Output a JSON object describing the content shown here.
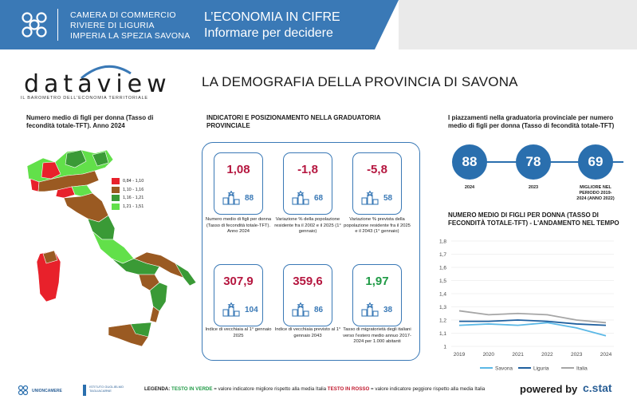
{
  "header": {
    "org_line1": "CAMERA DI COMMERCIO",
    "org_line2": "RIVIERE DI LIGURIA",
    "org_line3": "IMPERIA LA SPEZIA SAVONA",
    "title_line1": "L’ECONOMIA IN CIFRE",
    "title_line2": "Informare per decidere"
  },
  "brand": {
    "name": "dataview",
    "tagline": "IL BAROMETRO DELL'ECONOMIA TERRITORIALE"
  },
  "page_title": "LA DEMOGRAFIA DELLA PROVINCIA DI SAVONA",
  "map": {
    "title": "Numero medio di figli per donna (Tasso di fecondità totale-TFT). Anno 2024",
    "legend": [
      {
        "label": "0,84 - 1,10",
        "color": "#e8212b"
      },
      {
        "label": "1,10 - 1,16",
        "color": "#9a5a22"
      },
      {
        "label": "1,16 - 1,21",
        "color": "#3a9a36"
      },
      {
        "label": "1,21 - 1,51",
        "color": "#62e04a"
      }
    ]
  },
  "indicators": {
    "title": "INDICATORI E POSIZIONAMENTO NELLA GRADUATORIA PROVINCIALE",
    "items": [
      {
        "value": "1,08",
        "rank": "88",
        "color": "red",
        "desc": "Numero medio di figli per donna (Tasso di fecondità totale-TFT). Anno 2024"
      },
      {
        "value": "-1,8",
        "rank": "68",
        "color": "red",
        "desc": "Variazione % della popolazione residente fra il 2002 e il 2025 (1° gennaio)"
      },
      {
        "value": "-5,8",
        "rank": "58",
        "color": "red",
        "desc": "Variazione % prevista della popolazione residente fra il 2025 e il 2043 (1° gennaio)"
      },
      {
        "value": "307,9",
        "rank": "104",
        "color": "red",
        "desc": "Indice di vecchiaia al 1° gennaio 2025"
      },
      {
        "value": "359,6",
        "rank": "86",
        "color": "red",
        "desc": "Indice di vecchiaia previsto al 1° gennaio 2043"
      },
      {
        "value": "1,97",
        "rank": "38",
        "color": "green",
        "desc": "Tasso di migratorietà degli italiani verso l'estero medio annuo 2017-2024 per 1.000 abitanti"
      }
    ]
  },
  "rankings": {
    "title": "I piazzamenti nella graduatoria provinciale per numero medio di figli per donna (Tasso di fecondità totale-TFT)",
    "items": [
      {
        "value": "88",
        "label": "2024"
      },
      {
        "value": "78",
        "label": "2023"
      },
      {
        "value": "69",
        "label": "MIGLIORE NEL PERIODO 2019-2024 (ANNO 2022)"
      }
    ]
  },
  "chart_data": {
    "type": "line",
    "title": "NUMERO MEDIO DI FIGLI PER DONNA (TASSO DI FECONDITÀ TOTALE-TFT) - L'ANDAMENTO NEL TEMPO",
    "x": [
      "2019",
      "2020",
      "2021",
      "2022",
      "2023",
      "2024"
    ],
    "ylim": [
      1.0,
      1.8
    ],
    "yticks": [
      "1",
      "1,1",
      "1,2",
      "1,3",
      "1,4",
      "1,5",
      "1,6",
      "1,7",
      "1,8"
    ],
    "series": [
      {
        "name": "Savona",
        "color": "#5bb8e6",
        "values": [
          1.16,
          1.17,
          1.16,
          1.18,
          1.14,
          1.08
        ]
      },
      {
        "name": "Liguria",
        "color": "#1f5f9e",
        "values": [
          1.19,
          1.19,
          1.2,
          1.19,
          1.17,
          1.16
        ]
      },
      {
        "name": "Italia",
        "color": "#a6a6a6",
        "values": [
          1.27,
          1.24,
          1.25,
          1.24,
          1.2,
          1.18
        ]
      }
    ]
  },
  "footer": {
    "unioncamere": "UNIONCAMERE",
    "istituto": "ISTITUTO GUGLIELMO TAGLIACARNE",
    "legenda_label": "LEGENDA:",
    "green_tag": "TESTO IN VERDE",
    "green_text": " = valore indicatore migliore rispetto alla media Italia ",
    "red_tag": "TESTO IN ROSSO",
    "red_text": " = valore indicatore peggiore rispetto alla media Italia",
    "powered_by": "powered by",
    "cstat": "c.stat"
  }
}
